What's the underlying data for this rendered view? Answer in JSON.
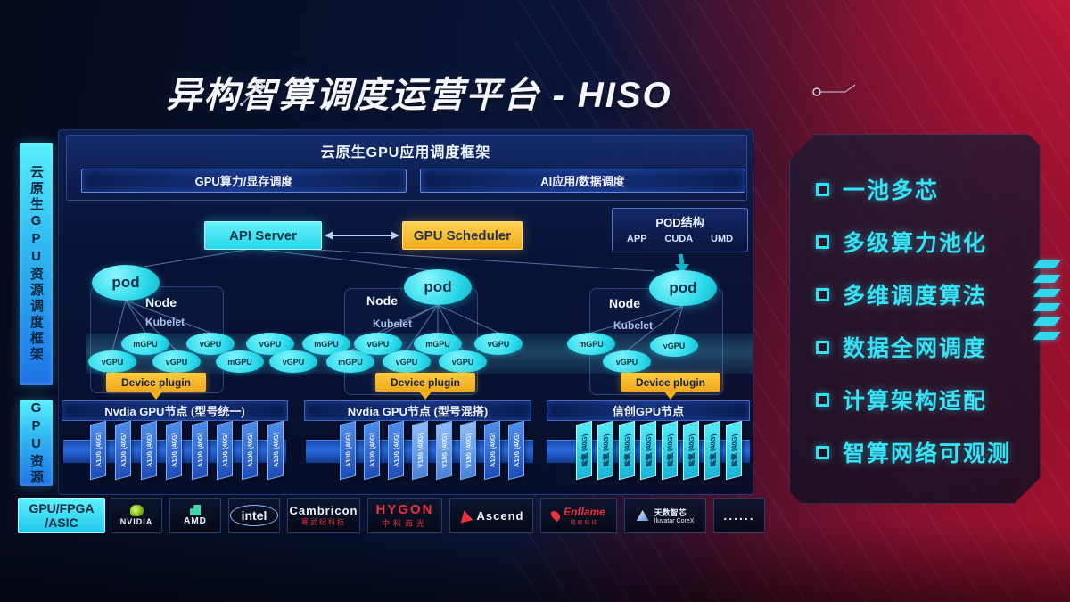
{
  "title": "异构智算调度运营平台 - HISO",
  "sidebar": {
    "top_label": "云原生GPU资源调度框架",
    "bottom_label": "GPU资源"
  },
  "framework": {
    "title": "云原生GPU应用调度框架",
    "schedule_buttons": [
      "GPU算力/显存调度",
      "AI应用/数据调度"
    ],
    "api_server_label": "API Server",
    "gpu_scheduler_label": "GPU Scheduler",
    "pod_structure": {
      "title": "POD结构",
      "items": [
        "APP",
        "CUDA",
        "UMD"
      ]
    },
    "nodes": [
      {
        "pod": "pod",
        "label": "Node",
        "agent": "Kubelet",
        "plugin": "Device plugin"
      },
      {
        "pod": "pod",
        "label": "Node",
        "agent": "Kubelet",
        "plugin": "Device plugin"
      },
      {
        "pod": "pod",
        "label": "Node",
        "agent": "Kubelet",
        "plugin": "Device plugin"
      }
    ],
    "ovals": [
      "vGPU",
      "mGPU",
      "vGPU",
      "vGPU",
      "mGPU",
      "vGPU",
      "vGPU",
      "mGPU",
      "mGPU",
      "vGPU",
      "vGPU",
      "mGPU",
      "vGPU",
      "vGPU",
      "mGPU",
      "vGPU",
      "vGPU"
    ]
  },
  "gpu_resources": {
    "groups": [
      {
        "header": "Nvdia GPU节点 (型号统一)",
        "cards": [
          "A100 (40G)",
          "A100 (40G)",
          "A100 (40G)",
          "A100 (40G)",
          "A100 (40G)",
          "A100 (40G)",
          "A100 (40G)",
          "A100 (40G)"
        ]
      },
      {
        "header": "Nvdia GPU节点 (型号混搭)",
        "cards": [
          "A100 (40G)",
          "A100 (40G)",
          "A100 (40G)",
          "V100 (40G)",
          "V100 (40G)",
          "V100 (40G)",
          "A100 (40G)",
          "A100 (40G)"
        ]
      },
      {
        "header": "信创GPU节点",
        "cards": [
          "昇腾 (40G)",
          "昇腾 (40G)",
          "昇腾 (40G)",
          "昇腾 (40G)",
          "昇腾 (40G)",
          "昇腾 (40G)",
          "昇腾 (40G)",
          "昇腾 (40G)"
        ]
      }
    ]
  },
  "vendors": {
    "box_line1": "GPU/FPGA",
    "box_line2": "/ASIC",
    "items": [
      {
        "name": "NVIDIA"
      },
      {
        "name": "AMD"
      },
      {
        "name": "intel"
      },
      {
        "name": "Cambricon",
        "sub": "寒武纪科技"
      },
      {
        "name": "HYGON",
        "sub": "中科海光"
      },
      {
        "name": "Ascend"
      },
      {
        "name": "Enflame",
        "sub": "燧原科技"
      },
      {
        "name": "天数智芯",
        "sub": "Iluvatar CoreX"
      },
      {
        "name": "......"
      }
    ]
  },
  "features": [
    "一池多芯",
    "多级算力池化",
    "多维调度算法",
    "数据全网调度",
    "计算架构适配",
    "智算网络可观测"
  ],
  "colors": {
    "cyan": "#35e8f5",
    "yellow": "#f5b622",
    "card_blue": "#2f6fd8",
    "card_light": "#7fb4f0",
    "panel_blue": "#0c2157",
    "feature_text": "#38e2f5"
  }
}
